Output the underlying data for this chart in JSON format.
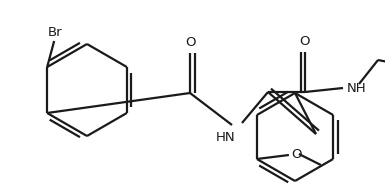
{
  "bg_color": "#ffffff",
  "line_color": "#1a1a1a",
  "text_color": "#1a1a1a",
  "lw": 1.6,
  "dbo": 0.008,
  "figsize": [
    3.85,
    1.85
  ],
  "dpi": 100,
  "xlim": [
    0,
    385
  ],
  "ylim": [
    0,
    185
  ]
}
